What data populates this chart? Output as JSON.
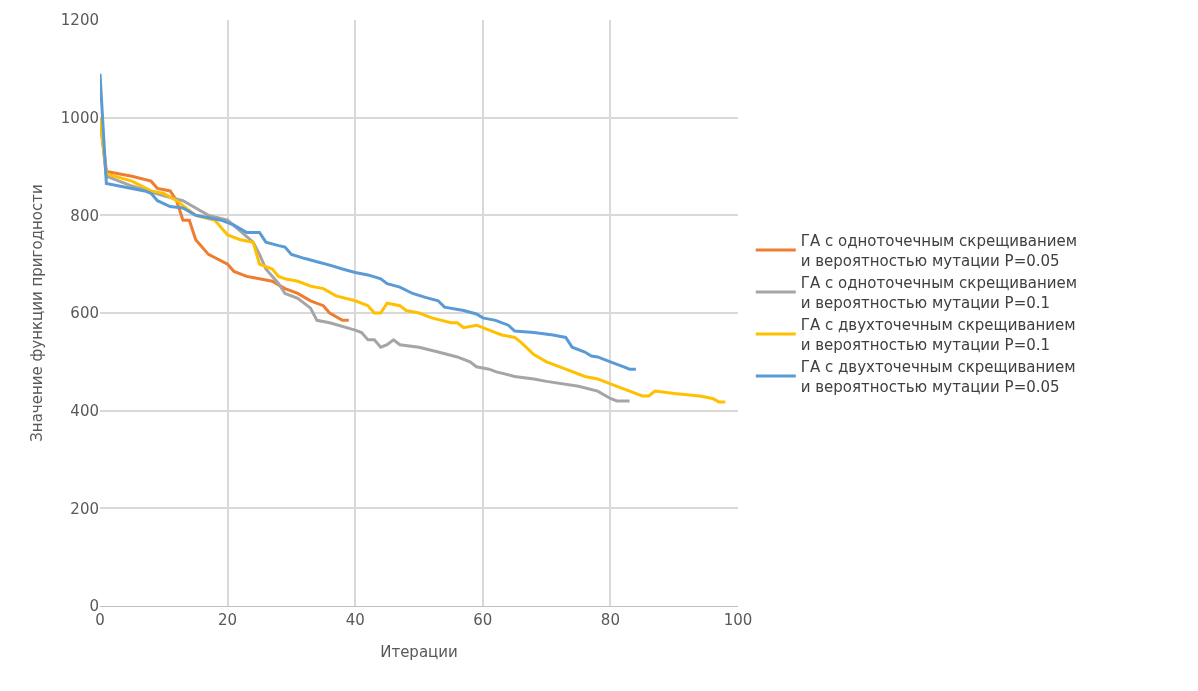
{
  "chart_data": {
    "type": "line",
    "xlabel": "Итерации",
    "ylabel": "Значение функции пригодности",
    "xlim": [
      0,
      100
    ],
    "xticks": [
      0,
      20,
      40,
      60,
      80,
      100
    ],
    "ylim": [
      0,
      1200
    ],
    "yticks": [
      0,
      200,
      400,
      600,
      800,
      1000,
      1200
    ],
    "grid": true,
    "legend": "right",
    "marker": "none",
    "line_style": "solid",
    "series": [
      {
        "name": "ГА с одноточечным скрещиванием и вероятностью мутации P=0.05",
        "color": "#ed7d31",
        "x": [
          0,
          1,
          5,
          8,
          9,
          11,
          12,
          13,
          14,
          15,
          17,
          20,
          21,
          23,
          25,
          27,
          29,
          31,
          33,
          35,
          36,
          38,
          39
        ],
        "values": [
          1000,
          890,
          880,
          870,
          855,
          850,
          830,
          790,
          790,
          750,
          720,
          700,
          685,
          675,
          670,
          665,
          650,
          640,
          625,
          615,
          600,
          585,
          585
        ]
      },
      {
        "name": "ГА с одноточечным скрещиванием и вероятностью мутации P=0.1",
        "color": "#a5a5a5",
        "x": [
          0,
          1,
          5,
          10,
          13,
          15,
          17,
          20,
          24,
          25,
          26,
          28,
          29,
          31,
          33,
          34,
          36,
          40,
          41,
          42,
          43,
          44,
          45,
          46,
          47,
          50,
          53,
          56,
          58,
          59,
          61,
          62,
          65,
          68,
          70,
          75,
          78,
          80,
          81,
          83
        ],
        "values": [
          1000,
          880,
          860,
          840,
          830,
          815,
          800,
          790,
          745,
          720,
          690,
          660,
          640,
          630,
          610,
          585,
          580,
          565,
          560,
          545,
          545,
          530,
          535,
          545,
          535,
          530,
          520,
          510,
          500,
          490,
          485,
          480,
          470,
          465,
          460,
          450,
          440,
          425,
          420,
          420
        ]
      },
      {
        "name": "ГА с двухточечным скрещиванием и вероятностью мутации P=0.1",
        "color": "#ffc000",
        "x": [
          0,
          1,
          5,
          8,
          10,
          12,
          15,
          18,
          20,
          22,
          24,
          25,
          27,
          28,
          29,
          31,
          33,
          35,
          37,
          40,
          42,
          43,
          44,
          45,
          47,
          48,
          50,
          52,
          55,
          56,
          57,
          59,
          60,
          62,
          63,
          65,
          66,
          68,
          70,
          73,
          76,
          78,
          80,
          83,
          85,
          86,
          87,
          90,
          94,
          96,
          97,
          98
        ],
        "values": [
          1000,
          885,
          870,
          850,
          845,
          830,
          800,
          790,
          760,
          750,
          745,
          700,
          690,
          675,
          670,
          665,
          655,
          650,
          635,
          625,
          615,
          600,
          600,
          620,
          615,
          605,
          600,
          590,
          580,
          580,
          570,
          575,
          570,
          560,
          555,
          550,
          540,
          515,
          500,
          485,
          470,
          465,
          455,
          440,
          430,
          430,
          440,
          435,
          430,
          425,
          418,
          418
        ]
      },
      {
        "name": "ГА с двухточечным скрещиванием и вероятностью мутации P=0.05",
        "color": "#5b9bd5",
        "x": [
          0,
          1,
          3,
          7,
          8,
          9,
          11,
          13,
          15,
          17,
          19,
          21,
          23,
          25,
          26,
          28,
          29,
          30,
          32,
          34,
          36,
          38,
          40,
          42,
          44,
          45,
          47,
          49,
          51,
          53,
          54,
          57,
          59,
          60,
          62,
          64,
          65,
          68,
          71,
          73,
          74,
          76,
          77,
          78,
          80,
          82,
          83,
          84
        ],
        "values": [
          1090,
          865,
          860,
          850,
          845,
          830,
          818,
          815,
          800,
          795,
          790,
          780,
          765,
          765,
          745,
          738,
          735,
          720,
          712,
          705,
          698,
          690,
          683,
          678,
          670,
          660,
          653,
          640,
          632,
          625,
          612,
          605,
          598,
          590,
          585,
          575,
          563,
          560,
          555,
          550,
          530,
          520,
          512,
          510,
          500,
          490,
          485,
          485
        ]
      }
    ]
  }
}
